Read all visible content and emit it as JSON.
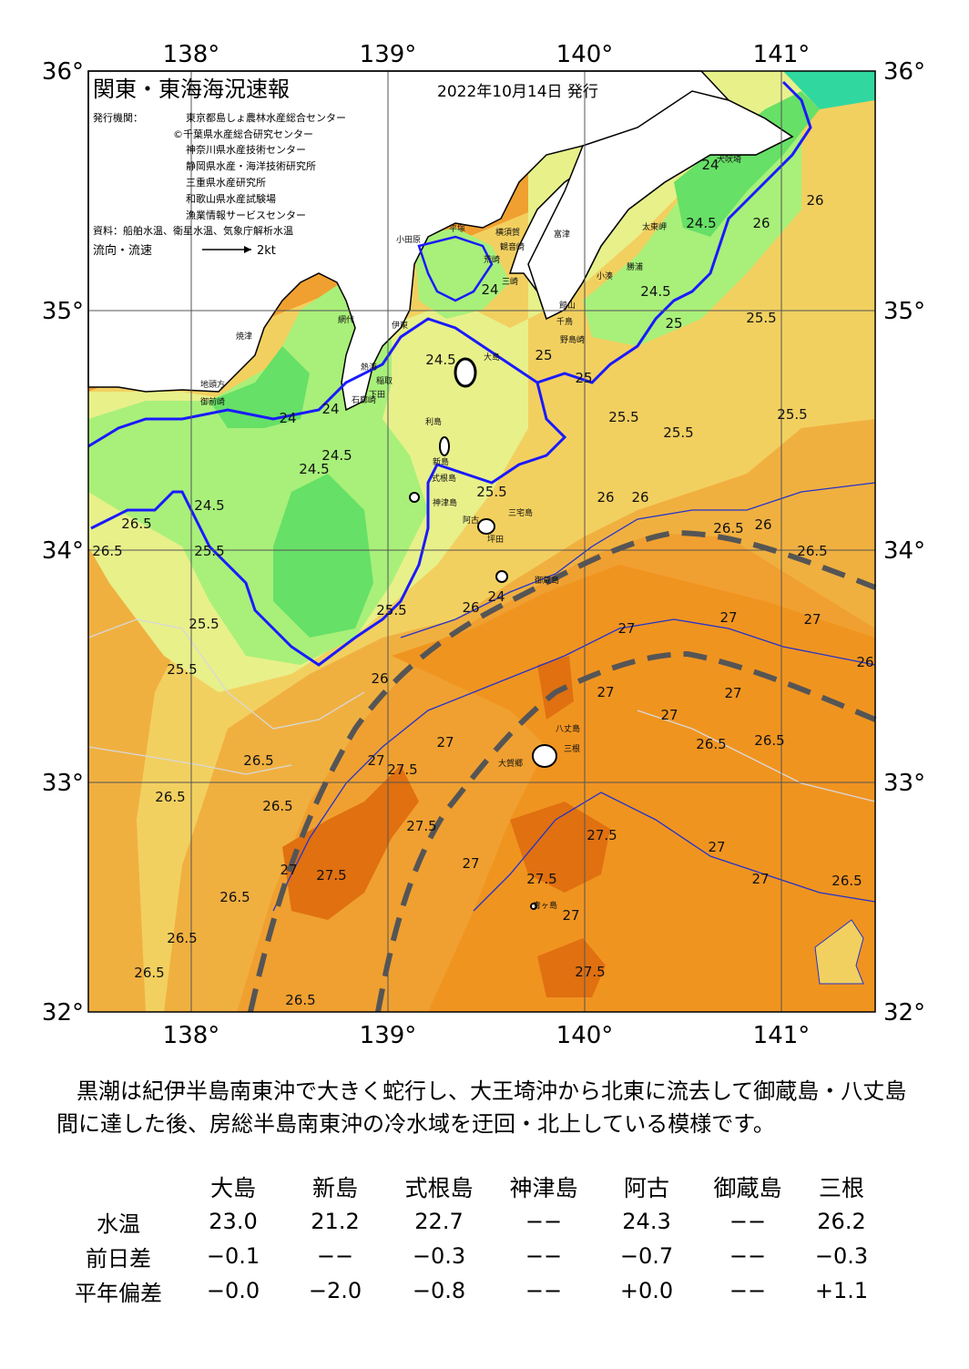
{
  "title": "関東・東海海況速報",
  "issue_date": "2022年10月14日 発行",
  "publishers_label": "発行機関：",
  "publishers": [
    "東京都島しょ農林水産総合センター",
    "©千葉県水産総合研究センター",
    "神奈川県水産技術センター",
    "静岡県水産・海洋技術研究所",
    "三重県水産研究所",
    "和歌山県水産試験場",
    "漁業情報サービスセンター"
  ],
  "sources": "資料：船舶水温、衛星水温、気象庁解析水温",
  "flow_legend": {
    "label": "流向・流速",
    "speed": "2kt"
  },
  "axes": {
    "lon_ticks": [
      "138°",
      "139°",
      "140°",
      "141°"
    ],
    "lat_ticks": [
      "36°",
      "35°",
      "34°",
      "33°",
      "32°"
    ]
  },
  "colors": {
    "land": "#ffffff",
    "sst_24": "#66e066",
    "sst_24_5": "#a8f07a",
    "sst_25": "#e8f08a",
    "sst_25_5": "#f2d060",
    "sst_26": "#f0b040",
    "sst_26_5": "#f0a030",
    "sst_27": "#f09420",
    "sst_27_5": "#e07010",
    "isotherm_24": "#1a1aff",
    "kuroshio_axis": "#555555"
  },
  "isotherm_labels": [
    "24",
    "24.5",
    "25",
    "25.5",
    "26",
    "26.5",
    "27",
    "27.5"
  ],
  "places": [
    "犬吠埼",
    "太東岬",
    "勝浦",
    "小湊",
    "館山",
    "千鳥",
    "野島崎",
    "富津",
    "横須賀",
    "観音崎",
    "荒崎",
    "三崎",
    "平塚",
    "小田原",
    "熱海",
    "伊東",
    "網代",
    "稲取",
    "下田",
    "石廊崎",
    "焼津",
    "御前崎",
    "地頭方",
    "大島",
    "利島",
    "新島",
    "式根島",
    "神津島",
    "三宅島",
    "御蔵島",
    "阿古",
    "坪田",
    "八丈島",
    "三根",
    "青ヶ島",
    "大賀郷"
  ],
  "summary": "黒潮は紀伊半島南東沖で大きく蛇行し、大王埼沖から北東に流去して御蔵島・八丈島間に達した後、房総半島南東沖の冷水域を迂回・北上している模様です。",
  "table": {
    "columns": [
      "大島",
      "新島",
      "式根島",
      "神津島",
      "阿古",
      "御蔵島",
      "三根"
    ],
    "rows": [
      {
        "label": "水温",
        "values": [
          "23.0",
          "21.2",
          "22.7",
          "−−",
          "24.3",
          "−−",
          "26.2"
        ]
      },
      {
        "label": "前日差",
        "values": [
          "−0.1",
          "−−",
          "−0.3",
          "−−",
          "−0.7",
          "−−",
          "−0.3"
        ]
      },
      {
        "label": "平年偏差",
        "values": [
          "−0.0",
          "−2.0",
          "−0.8",
          "−−",
          "+0.0",
          "−−",
          "+1.1"
        ]
      }
    ]
  }
}
